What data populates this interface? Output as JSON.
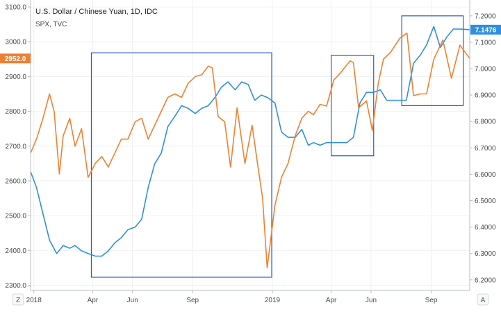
{
  "header": {
    "title": "U.S. Dollar / Chinese Yuan, 1D, IDC",
    "subtitle": "SPX, TVC"
  },
  "corner_buttons": {
    "left": "Z",
    "right": "A"
  },
  "colors": {
    "usdcny": "#2f8fde",
    "spx": "#f08030",
    "box": "#2a5bb8",
    "grid": "#eef0f3"
  },
  "chart_data": {
    "type": "line",
    "title": "U.S. Dollar / Chinese Yuan, 1D, IDC",
    "subtitle": "SPX, TVC",
    "x": [
      "2018-01",
      "2018-02",
      "2018-03",
      "2018-04",
      "2018-05",
      "2018-06",
      "2018-07",
      "2018-08",
      "2018-09",
      "2018-10",
      "2018-11",
      "2018-12",
      "2019-01",
      "2019-02",
      "2019-03",
      "2019-04",
      "2019-05",
      "2019-06",
      "2019-07",
      "2019-08",
      "2019-09",
      "2019-10"
    ],
    "x_range": [
      "2017-12-27",
      "2019-10-30"
    ],
    "x_tick_labels": [
      {
        "date": "2018-01-01",
        "label": "2018"
      },
      {
        "date": "2018-04-01",
        "label": "Apr"
      },
      {
        "date": "2018-06-01",
        "label": "Jun"
      },
      {
        "date": "2018-09-01",
        "label": "Sep"
      },
      {
        "date": "2019-01-01",
        "label": "2019"
      },
      {
        "date": "2019-04-01",
        "label": "Apr"
      },
      {
        "date": "2019-06-01",
        "label": "Jun"
      },
      {
        "date": "2019-09-01",
        "label": "Sep"
      }
    ],
    "left_axis": {
      "ylim": [
        2285,
        3120
      ],
      "ticks": [
        "2300.0",
        "2400.0",
        "2500.0",
        "2600.0",
        "2700.0",
        "2800.0",
        "2900.0",
        "3000.0",
        "3100.0"
      ]
    },
    "right_axis": {
      "ylim": [
        6.16,
        7.26
      ],
      "ticks": [
        "6.2000",
        "6.3000",
        "6.4000",
        "6.5000",
        "6.6000",
        "6.7000",
        "6.8000",
        "6.9000",
        "7.0000",
        "7.1000",
        "7.2000"
      ]
    },
    "series": [
      {
        "name": "U.S. Dollar / Chinese Yuan",
        "axis": "right",
        "last_value_label": "7.1476",
        "points": [
          [
            "2017-12-27",
            6.61
          ],
          [
            "2018-01-05",
            6.55
          ],
          [
            "2018-01-15",
            6.45
          ],
          [
            "2018-01-25",
            6.35
          ],
          [
            "2018-02-05",
            6.3
          ],
          [
            "2018-02-15",
            6.33
          ],
          [
            "2018-02-25",
            6.32
          ],
          [
            "2018-03-05",
            6.33
          ],
          [
            "2018-03-15",
            6.31
          ],
          [
            "2018-03-25",
            6.3
          ],
          [
            "2018-04-05",
            6.29
          ],
          [
            "2018-04-15",
            6.29
          ],
          [
            "2018-04-25",
            6.31
          ],
          [
            "2018-05-05",
            6.34
          ],
          [
            "2018-05-15",
            6.36
          ],
          [
            "2018-05-25",
            6.39
          ],
          [
            "2018-06-05",
            6.4
          ],
          [
            "2018-06-15",
            6.43
          ],
          [
            "2018-06-25",
            6.55
          ],
          [
            "2018-07-05",
            6.64
          ],
          [
            "2018-07-15",
            6.68
          ],
          [
            "2018-07-25",
            6.78
          ],
          [
            "2018-08-05",
            6.82
          ],
          [
            "2018-08-15",
            6.86
          ],
          [
            "2018-08-25",
            6.85
          ],
          [
            "2018-09-05",
            6.83
          ],
          [
            "2018-09-15",
            6.85
          ],
          [
            "2018-09-25",
            6.86
          ],
          [
            "2018-10-05",
            6.89
          ],
          [
            "2018-10-15",
            6.93
          ],
          [
            "2018-10-25",
            6.95
          ],
          [
            "2018-11-05",
            6.92
          ],
          [
            "2018-11-15",
            6.95
          ],
          [
            "2018-11-25",
            6.94
          ],
          [
            "2018-12-05",
            6.88
          ],
          [
            "2018-12-15",
            6.9
          ],
          [
            "2018-12-25",
            6.89
          ],
          [
            "2019-01-05",
            6.87
          ],
          [
            "2019-01-15",
            6.76
          ],
          [
            "2019-01-25",
            6.74
          ],
          [
            "2019-02-05",
            6.74
          ],
          [
            "2019-02-15",
            6.77
          ],
          [
            "2019-02-25",
            6.71
          ],
          [
            "2019-03-05",
            6.72
          ],
          [
            "2019-03-15",
            6.71
          ],
          [
            "2019-03-25",
            6.72
          ],
          [
            "2019-04-05",
            6.72
          ],
          [
            "2019-04-15",
            6.72
          ],
          [
            "2019-04-25",
            6.72
          ],
          [
            "2019-05-05",
            6.74
          ],
          [
            "2019-05-15",
            6.87
          ],
          [
            "2019-05-25",
            6.91
          ],
          [
            "2019-06-05",
            6.91
          ],
          [
            "2019-06-15",
            6.92
          ],
          [
            "2019-06-25",
            6.88
          ],
          [
            "2019-07-05",
            6.88
          ],
          [
            "2019-07-15",
            6.88
          ],
          [
            "2019-07-25",
            6.88
          ],
          [
            "2019-08-05",
            7.02
          ],
          [
            "2019-08-15",
            7.05
          ],
          [
            "2019-08-25",
            7.09
          ],
          [
            "2019-09-05",
            7.16
          ],
          [
            "2019-09-15",
            7.08
          ],
          [
            "2019-09-25",
            7.12
          ],
          [
            "2019-10-05",
            7.15
          ],
          [
            "2019-10-15",
            7.15
          ],
          [
            "2019-10-30",
            7.1476
          ]
        ]
      },
      {
        "name": "SPX",
        "axis": "left",
        "last_value_label": "2952.0",
        "points": [
          [
            "2017-12-27",
            2680
          ],
          [
            "2018-01-05",
            2720
          ],
          [
            "2018-01-15",
            2780
          ],
          [
            "2018-01-25",
            2850
          ],
          [
            "2018-02-01",
            2800
          ],
          [
            "2018-02-09",
            2620
          ],
          [
            "2018-02-15",
            2730
          ],
          [
            "2018-02-25",
            2780
          ],
          [
            "2018-03-05",
            2700
          ],
          [
            "2018-03-15",
            2750
          ],
          [
            "2018-03-25",
            2610
          ],
          [
            "2018-04-05",
            2650
          ],
          [
            "2018-04-15",
            2670
          ],
          [
            "2018-04-25",
            2640
          ],
          [
            "2018-05-05",
            2680
          ],
          [
            "2018-05-15",
            2720
          ],
          [
            "2018-05-25",
            2720
          ],
          [
            "2018-06-05",
            2770
          ],
          [
            "2018-06-15",
            2780
          ],
          [
            "2018-06-25",
            2720
          ],
          [
            "2018-07-05",
            2760
          ],
          [
            "2018-07-15",
            2800
          ],
          [
            "2018-07-25",
            2840
          ],
          [
            "2018-08-05",
            2850
          ],
          [
            "2018-08-15",
            2840
          ],
          [
            "2018-08-25",
            2880
          ],
          [
            "2018-09-05",
            2900
          ],
          [
            "2018-09-15",
            2905
          ],
          [
            "2018-09-25",
            2930
          ],
          [
            "2018-10-01",
            2925
          ],
          [
            "2018-10-10",
            2785
          ],
          [
            "2018-10-20",
            2770
          ],
          [
            "2018-10-29",
            2640
          ],
          [
            "2018-11-08",
            2810
          ],
          [
            "2018-11-20",
            2650
          ],
          [
            "2018-12-01",
            2760
          ],
          [
            "2018-12-10",
            2640
          ],
          [
            "2018-12-17",
            2550
          ],
          [
            "2018-12-24",
            2350
          ],
          [
            "2019-01-05",
            2530
          ],
          [
            "2019-01-15",
            2610
          ],
          [
            "2019-01-25",
            2650
          ],
          [
            "2019-02-05",
            2730
          ],
          [
            "2019-02-15",
            2780
          ],
          [
            "2019-02-25",
            2800
          ],
          [
            "2019-03-05",
            2790
          ],
          [
            "2019-03-15",
            2820
          ],
          [
            "2019-03-25",
            2815
          ],
          [
            "2019-04-05",
            2890
          ],
          [
            "2019-04-15",
            2910
          ],
          [
            "2019-04-30",
            2945
          ],
          [
            "2019-05-05",
            2940
          ],
          [
            "2019-05-13",
            2810
          ],
          [
            "2019-05-25",
            2830
          ],
          [
            "2019-06-03",
            2745
          ],
          [
            "2019-06-12",
            2880
          ],
          [
            "2019-06-20",
            2950
          ],
          [
            "2019-07-01",
            2970
          ],
          [
            "2019-07-15",
            3010
          ],
          [
            "2019-07-26",
            3025
          ],
          [
            "2019-08-05",
            2845
          ],
          [
            "2019-08-15",
            2850
          ],
          [
            "2019-08-25",
            2850
          ],
          [
            "2019-09-05",
            2950
          ],
          [
            "2019-09-19",
            3005
          ],
          [
            "2019-10-02",
            2895
          ],
          [
            "2019-10-15",
            2990
          ],
          [
            "2019-10-30",
            2952
          ]
        ]
      }
    ],
    "annotations": [
      {
        "type": "rectangle",
        "x0": "2018-03-30",
        "x1": "2018-12-31",
        "y0": 6.21,
        "y1": 7.06,
        "axis": "right"
      },
      {
        "type": "rectangle",
        "x0": "2019-04-01",
        "x1": "2019-06-05",
        "y0": 6.67,
        "y1": 7.05,
        "axis": "right"
      },
      {
        "type": "rectangle",
        "x0": "2019-07-18",
        "x1": "2019-10-20",
        "y0": 6.86,
        "y1": 7.2,
        "axis": "right"
      }
    ]
  }
}
